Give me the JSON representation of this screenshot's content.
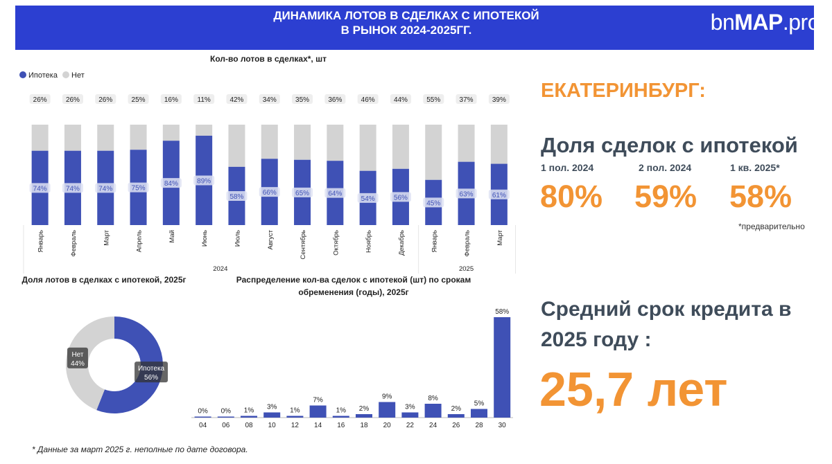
{
  "header": {
    "title_line1": "ДИНАМИКА  ЛОТОВ В СДЕЛКАХ С ИПОТЕКОЙ",
    "title_line2": "В РЫНОК 2024-2025ГГ.",
    "logo_prefix": "bn",
    "logo_bold": "MAP",
    "logo_suffix": ".pro"
  },
  "colors": {
    "mortgage": "#3f51b5",
    "other": "#d3d3d3",
    "accent": "#f29434",
    "header_bg": "#2c3fd1"
  },
  "chart_data": [
    {
      "type": "bar",
      "stacked": true,
      "percent": true,
      "title": "Кол-во лотов в сделках*, шт",
      "legend": [
        "Ипотека",
        "Нет"
      ],
      "categories": [
        "Январь",
        "Февраль",
        "Март",
        "Апрель",
        "Май",
        "Июнь",
        "Июль",
        "Август",
        "Сентябрь",
        "Октябрь",
        "Ноябрь",
        "Декабрь",
        "Январь",
        "Февраль",
        "Март"
      ],
      "groups": [
        {
          "label": "2024",
          "count": 12
        },
        {
          "label": "2025",
          "count": 3
        }
      ],
      "series": [
        {
          "name": "Ипотека",
          "values": [
            74,
            74,
            74,
            75,
            84,
            89,
            58,
            66,
            65,
            64,
            54,
            56,
            45,
            63,
            61
          ]
        },
        {
          "name": "Нет",
          "values": [
            26,
            26,
            26,
            25,
            16,
            11,
            42,
            34,
            35,
            36,
            46,
            44,
            55,
            37,
            39
          ]
        }
      ]
    },
    {
      "type": "pie",
      "donut": true,
      "title": "Доля лотов в сделках с ипотекой, 2025г",
      "labels": [
        "Ипотека",
        "Нет"
      ],
      "values": [
        56,
        44
      ]
    },
    {
      "type": "bar",
      "title_line1": "Распределение кол-ва сделок с ипотекой (шт) по срокам",
      "title_line2": "обременения (годы), 2025г",
      "categories": [
        "04",
        "06",
        "08",
        "10",
        "12",
        "14",
        "16",
        "18",
        "20",
        "22",
        "24",
        "26",
        "28",
        "30"
      ],
      "values": [
        0,
        0,
        1,
        3,
        1,
        7,
        1,
        2,
        9,
        3,
        8,
        2,
        5,
        58
      ],
      "ylim": [
        0,
        58
      ]
    }
  ],
  "summary": {
    "city": "ЕКАТЕРИНБУРГ:",
    "share_title": "Доля сделок с ипотекой",
    "periods": [
      {
        "label": "1 пол. 2024",
        "value": "80%"
      },
      {
        "label": "2 пол. 2024",
        "value": "59%"
      },
      {
        "label": "1 кв. 2025*",
        "value": "58%"
      }
    ],
    "preliminary_note": "*предварительно",
    "term_title_line1": "Средний срок кредита в",
    "term_title_line2": "2025 году :",
    "term_value": "25,7 лет"
  },
  "footnote": "* Данные за март 2025 г. неполные по дате договора."
}
